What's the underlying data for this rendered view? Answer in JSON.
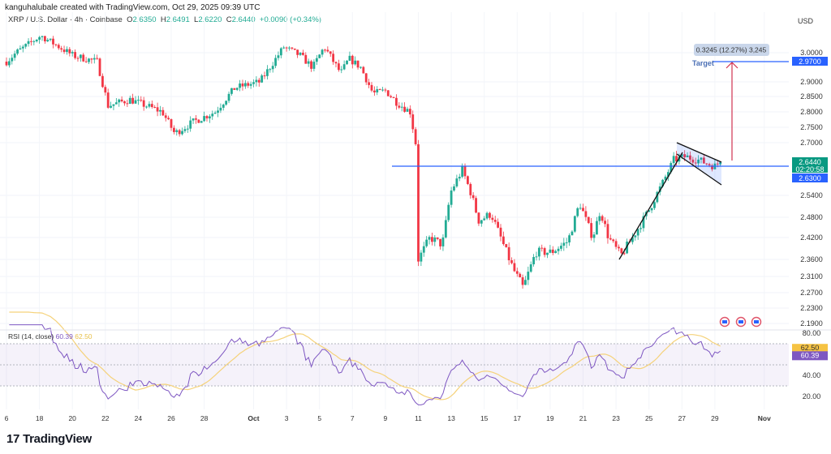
{
  "header": {
    "credit": "kanguhalubale created with TradingView.com, Oct 29, 2025 09:39 UTC",
    "symbol": "XRP / U.S. Dollar · 4h · Coinbase",
    "open_label": "O",
    "open": "2.6350",
    "high_label": "H",
    "high": "2.6491",
    "low_label": "L",
    "low": "2.6220",
    "close_label": "C",
    "close": "2.6440",
    "change": "+0.0090 (+0.34%)"
  },
  "currency": "USD",
  "colors": {
    "up": "#22ab94",
    "down": "#f23645",
    "hline": "#2962ff",
    "rsi": "#7e57c2",
    "rsi_ma": "#f5d27a",
    "arrow": "#d0314f"
  },
  "annotations": {
    "measure_label": "0.3245 (12.27%) 3,245",
    "target_label": "Target",
    "target_price": "2.9700",
    "support_price": "2.6300",
    "last_price": "2.6440",
    "countdown": "02:20:58"
  },
  "rsi": {
    "label": "RSI (14, close)",
    "value": "60.39",
    "ma_value": "62.50",
    "ticks": [
      "80.00",
      "40.00",
      "20.00"
    ],
    "upper_band": 70,
    "lower_band": 30
  },
  "footer": {
    "brand": "TradingView",
    "logo_icon": "tradingview-logo-icon"
  },
  "chart_data": {
    "type": "candlestick",
    "timeframe": "4h",
    "y_ticks": [
      "3.0000",
      "2.9000",
      "2.8500",
      "2.8000",
      "2.7500",
      "2.7000",
      "2.5400",
      "2.4800",
      "2.4200",
      "2.3600",
      "2.3100",
      "2.2700",
      "2.2300",
      "2.1900"
    ],
    "x_ticks": [
      "6",
      "18",
      "20",
      "22",
      "24",
      "26",
      "28",
      "Oct",
      "3",
      "5",
      "7",
      "9",
      "11",
      "13",
      "15",
      "17",
      "19",
      "21",
      "23",
      "25",
      "27",
      "29",
      "Nov"
    ],
    "price_path": [
      [
        "2025-09-16T00:00",
        2.97
      ],
      [
        "2025-09-16T14:00",
        3.0
      ],
      [
        "2025-09-18T02:00",
        3.06
      ],
      [
        "2025-09-20T01:00",
        2.99
      ],
      [
        "2025-09-21T12:00",
        2.97
      ],
      [
        "2025-09-22T04:00",
        2.82
      ],
      [
        "2025-09-23T12:00",
        2.84
      ],
      [
        "2025-09-25T11:00",
        2.8
      ],
      [
        "2025-09-26T05:00",
        2.73
      ],
      [
        "2025-09-27T10:00",
        2.77
      ],
      [
        "2025-09-28T16:00",
        2.8
      ],
      [
        "2025-09-29T21:00",
        2.88
      ],
      [
        "2025-10-01T09:00",
        2.9
      ],
      [
        "2025-10-02T20:00",
        3.02
      ],
      [
        "2025-10-03T20:00",
        2.99
      ],
      [
        "2025-10-04T14:00",
        2.95
      ],
      [
        "2025-10-05T07:00",
        3.02
      ],
      [
        "2025-10-06T07:00",
        2.93
      ],
      [
        "2025-10-06T19:00",
        2.98
      ],
      [
        "2025-10-07T12:00",
        2.95
      ],
      [
        "2025-10-08T06:00",
        2.86
      ],
      [
        "2025-10-09T00:00",
        2.87
      ],
      [
        "2025-10-09T17:00",
        2.83
      ],
      [
        "2025-10-10T12:00",
        2.8
      ],
      [
        "2025-10-10T20:00",
        2.7
      ],
      [
        "2025-10-11T00:00",
        2.36
      ],
      [
        "2025-10-11T17:00",
        2.42
      ],
      [
        "2025-10-12T11:00",
        2.4
      ],
      [
        "2025-10-12T23:00",
        2.55
      ],
      [
        "2025-10-13T16:00",
        2.62
      ],
      [
        "2025-10-14T04:00",
        2.55
      ],
      [
        "2025-10-14T16:00",
        2.47
      ],
      [
        "2025-10-15T10:00",
        2.49
      ],
      [
        "2025-10-16T04:00",
        2.4
      ],
      [
        "2025-10-16T21:00",
        2.32
      ],
      [
        "2025-10-17T09:00",
        2.28
      ],
      [
        "2025-10-18T03:00",
        2.38
      ],
      [
        "2025-10-19T02:00",
        2.38
      ],
      [
        "2025-10-20T02:00",
        2.41
      ],
      [
        "2025-10-20T19:00",
        2.52
      ],
      [
        "2025-10-21T14:00",
        2.42
      ],
      [
        "2025-10-22T01:00",
        2.5
      ],
      [
        "2025-10-22T13:00",
        2.42
      ],
      [
        "2025-10-23T07:00",
        2.37
      ],
      [
        "2025-10-24T00:00",
        2.42
      ],
      [
        "2025-10-25T00:00",
        2.5
      ],
      [
        "2025-10-25T18:00",
        2.57
      ],
      [
        "2025-10-26T12:00",
        2.65
      ],
      [
        "2025-10-27T05:00",
        2.66
      ],
      [
        "2025-10-28T00:00",
        2.65
      ],
      [
        "2025-10-28T23:00",
        2.63
      ],
      [
        "2025-10-29T08:00",
        2.644
      ]
    ]
  }
}
